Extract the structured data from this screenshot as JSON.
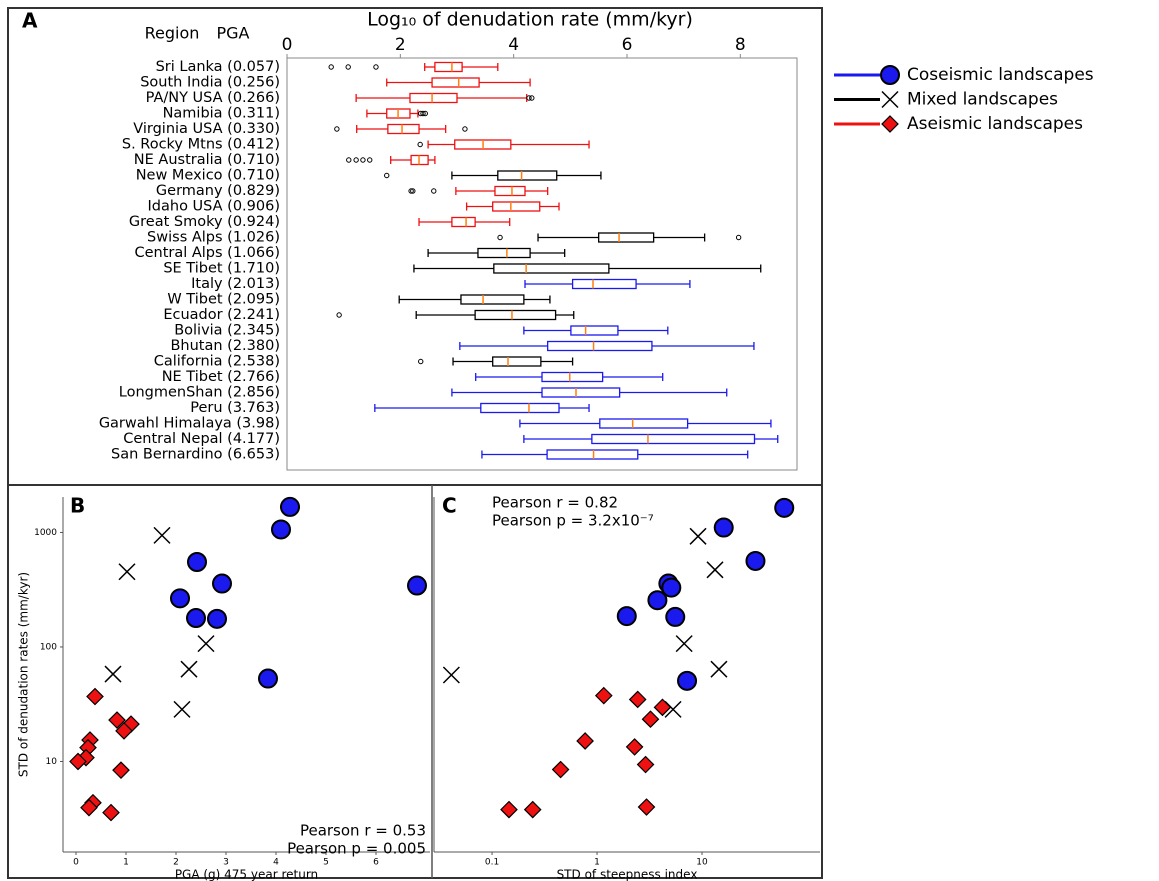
{
  "legend": [
    {
      "name": "Coseismic landscapes",
      "color": "#1a1aee",
      "marker": "circle"
    },
    {
      "name": "Mixed landscapes",
      "color": "#000000",
      "marker": "x"
    },
    {
      "name": "Aseismic landscapes",
      "color": "#ee1111",
      "marker": "diamond"
    }
  ],
  "chart_data": [
    {
      "type": "box",
      "orientation": "horizontal",
      "panel": "A",
      "title": "Log₁₀ of denudation rate (mm/kyr)",
      "row_header": [
        "Region",
        "PGA"
      ],
      "median_color": "#ff7f0e",
      "xlim": [
        0,
        9
      ],
      "xticks": [
        0,
        2,
        4,
        6,
        8
      ],
      "categories": [
        "Sri Lanka (0.057)",
        "South India (0.256)",
        "PA/NY USA (0.266)",
        "Namibia (0.311)",
        "Virginia USA (0.330)",
        "S. Rocky Mtns (0.412)",
        "NE Australia (0.710)",
        "New Mexico (0.710)",
        "Germany (0.829)",
        "Idaho USA (0.906)",
        "Great Smoky (0.924)",
        "Swiss Alps (1.026)",
        "Central Alps (1.066)",
        "SE Tibet (1.710)",
        "Italy (2.013)",
        "W Tibet (2.095)",
        "Ecuador (2.241)",
        "Bolivia (2.345)",
        "Bhutan (2.380)",
        "California (2.538)",
        "NE Tibet (2.766)",
        "LongmenShan (2.856)",
        "Peru (3.763)",
        "Garwahl Himalaya (3.98)",
        "Central Nepal (4.177)",
        "San Bernardino (6.653)"
      ],
      "boxes": [
        {
          "color": "#ee1111",
          "whisker_low": 2.43,
          "q1": 2.61,
          "median": 2.91,
          "q3": 3.09,
          "whisker_high": 3.72,
          "outliers": [
            0.78,
            1.08,
            1.57
          ]
        },
        {
          "color": "#ee1111",
          "whisker_low": 1.76,
          "q1": 2.56,
          "median": 3.03,
          "q3": 3.39,
          "whisker_high": 4.29,
          "outliers": []
        },
        {
          "color": "#ee1111",
          "whisker_low": 1.22,
          "q1": 2.17,
          "median": 2.56,
          "q3": 3.0,
          "whisker_high": 4.23,
          "outliers": [
            4.27,
            4.32
          ]
        },
        {
          "color": "#ee1111",
          "whisker_low": 1.41,
          "q1": 1.76,
          "median": 1.96,
          "q3": 2.17,
          "whisker_high": 2.31,
          "outliers": [
            2.36,
            2.4,
            2.44
          ]
        },
        {
          "color": "#ee1111",
          "whisker_low": 1.23,
          "q1": 1.78,
          "median": 2.03,
          "q3": 2.33,
          "whisker_high": 2.8,
          "outliers": [
            0.88,
            3.14
          ]
        },
        {
          "color": "#ee1111",
          "whisker_low": 2.49,
          "q1": 2.96,
          "median": 3.46,
          "q3": 3.95,
          "whisker_high": 5.33,
          "outliers": [
            2.35
          ]
        },
        {
          "color": "#ee1111",
          "whisker_low": 1.83,
          "q1": 2.19,
          "median": 2.33,
          "q3": 2.49,
          "whisker_high": 2.61,
          "outliers": [
            1.09,
            1.22,
            1.34,
            1.46
          ]
        },
        {
          "color": "#000000",
          "whisker_low": 2.91,
          "q1": 3.72,
          "median": 4.14,
          "q3": 4.76,
          "whisker_high": 5.54,
          "outliers": [
            1.76
          ]
        },
        {
          "color": "#ee1111",
          "whisker_low": 2.98,
          "q1": 3.67,
          "median": 3.97,
          "q3": 4.2,
          "whisker_high": 4.6,
          "outliers": [
            2.19,
            2.22,
            2.59
          ]
        },
        {
          "color": "#ee1111",
          "whisker_low": 3.17,
          "q1": 3.63,
          "median": 3.95,
          "q3": 4.46,
          "whisker_high": 4.8,
          "outliers": []
        },
        {
          "color": "#ee1111",
          "whisker_low": 2.33,
          "q1": 2.91,
          "median": 3.16,
          "q3": 3.32,
          "whisker_high": 3.93,
          "outliers": []
        },
        {
          "color": "#000000",
          "whisker_low": 4.43,
          "q1": 5.5,
          "median": 5.86,
          "q3": 6.47,
          "whisker_high": 7.37,
          "outliers": [
            3.76,
            7.97
          ]
        },
        {
          "color": "#000000",
          "whisker_low": 2.49,
          "q1": 3.37,
          "median": 3.88,
          "q3": 4.29,
          "whisker_high": 4.9,
          "outliers": []
        },
        {
          "color": "#000000",
          "whisker_low": 2.24,
          "q1": 3.65,
          "median": 4.22,
          "q3": 5.68,
          "whisker_high": 8.36,
          "outliers": []
        },
        {
          "color": "#1a1aee",
          "whisker_low": 4.2,
          "q1": 5.04,
          "median": 5.4,
          "q3": 6.16,
          "whisker_high": 7.11,
          "outliers": []
        },
        {
          "color": "#000000",
          "whisker_low": 1.98,
          "q1": 3.07,
          "median": 3.46,
          "q3": 4.18,
          "whisker_high": 4.64,
          "outliers": []
        },
        {
          "color": "#000000",
          "whisker_low": 2.28,
          "q1": 3.32,
          "median": 3.97,
          "q3": 4.74,
          "whisker_high": 5.06,
          "outliers": [
            0.92
          ]
        },
        {
          "color": "#1a1aee",
          "whisker_low": 4.18,
          "q1": 5.01,
          "median": 5.27,
          "q3": 5.84,
          "whisker_high": 6.72,
          "outliers": []
        },
        {
          "color": "#1a1aee",
          "whisker_low": 3.05,
          "q1": 4.6,
          "median": 5.41,
          "q3": 6.44,
          "whisker_high": 8.24,
          "outliers": []
        },
        {
          "color": "#000000",
          "whisker_low": 2.93,
          "q1": 3.63,
          "median": 3.9,
          "q3": 4.48,
          "whisker_high": 5.04,
          "outliers": [
            2.36
          ]
        },
        {
          "color": "#1a1aee",
          "whisker_low": 3.33,
          "q1": 4.5,
          "median": 4.99,
          "q3": 5.57,
          "whisker_high": 6.63,
          "outliers": []
        },
        {
          "color": "#1a1aee",
          "whisker_low": 2.91,
          "q1": 4.5,
          "median": 5.1,
          "q3": 5.87,
          "whisker_high": 7.76,
          "outliers": []
        },
        {
          "color": "#1a1aee",
          "whisker_low": 1.55,
          "q1": 3.42,
          "median": 4.27,
          "q3": 4.8,
          "whisker_high": 5.33,
          "outliers": []
        },
        {
          "color": "#1a1aee",
          "whisker_low": 4.11,
          "q1": 5.52,
          "median": 6.1,
          "q3": 7.07,
          "whisker_high": 8.54,
          "outliers": []
        },
        {
          "color": "#1a1aee",
          "whisker_low": 4.18,
          "q1": 5.38,
          "median": 6.37,
          "q3": 8.25,
          "whisker_high": 8.66,
          "outliers": []
        },
        {
          "color": "#1a1aee",
          "whisker_low": 3.44,
          "q1": 4.59,
          "median": 5.41,
          "q3": 6.19,
          "whisker_high": 8.13,
          "outliers": []
        }
      ]
    },
    {
      "type": "scatter",
      "panel": "B",
      "xlabel": "PGA (g) 475 year return",
      "ylabel": "STD of denudation rates (mm/kyr)",
      "annotations": [
        "Pearson r = 0.53",
        "Pearson p = 0.005"
      ],
      "xlim": [
        -0.26,
        7.08
      ],
      "xticks": [
        0,
        1,
        2,
        3,
        4,
        5,
        6
      ],
      "yscale": "log",
      "ylim": [
        1.62,
        2040
      ],
      "yticks": [
        10,
        100,
        1000
      ],
      "series": [
        {
          "color": "#1a1aee",
          "marker": "circle",
          "x": [
            4.28,
            4.1,
            2.42,
            2.92,
            2.08,
            2.4,
            2.82,
            3.84,
            6.82
          ],
          "values": [
            1671,
            1062,
            552,
            358,
            266,
            179,
            176,
            53,
            344
          ]
        },
        {
          "color": "#000000",
          "marker": "x",
          "x": [
            1.72,
            1.02,
            2.6,
            0.74,
            2.26,
            2.12
          ],
          "values": [
            943,
            454,
            107,
            58,
            64,
            28.5
          ]
        },
        {
          "color": "#ee1111",
          "marker": "diamond",
          "x": [
            0.38,
            0.82,
            1.1,
            0.96,
            0.28,
            0.24,
            0.2,
            0.04,
            0.9,
            0.34,
            0.26,
            0.7
          ],
          "values": [
            36.9,
            23,
            21.2,
            18.5,
            15.4,
            13.2,
            10.8,
            10,
            8.4,
            4.36,
            3.95,
            3.58
          ]
        }
      ]
    },
    {
      "type": "scatter",
      "panel": "C",
      "xlabel": "STD of steepness index",
      "annotations": [
        "Pearson r = 0.82",
        "Pearson p = 3.2x10⁻⁷"
      ],
      "xscale": "log",
      "xlim": [
        0.028,
        133
      ],
      "xticks": [
        0.1,
        1,
        10
      ],
      "yscale": "log",
      "ylim": [
        1.62,
        2040
      ],
      "series": [
        {
          "color": "#1a1aee",
          "marker": "circle",
          "x": [
            60.7,
            16.1,
            32.3,
            4.78,
            5.1,
            3.76,
            5.56,
            1.92,
            7.2
          ],
          "values": [
            1640,
            1104,
            564,
            358,
            330,
            256,
            183,
            186,
            50.6
          ]
        },
        {
          "color": "#000000",
          "marker": "x",
          "x": [
            9.17,
            13.3,
            6.76,
            14.5,
            5.3,
            0.041
          ],
          "values": [
            925,
            472,
            107,
            64,
            28.5,
            56.9
          ]
        },
        {
          "color": "#ee1111",
          "marker": "diamond",
          "x": [
            1.16,
            2.44,
            4.2,
            3.23,
            0.77,
            2.28,
            2.9,
            0.45,
            0.244,
            0.145,
            2.96
          ],
          "values": [
            37.6,
            34.8,
            29.7,
            23.4,
            15.1,
            13.4,
            9.4,
            8.5,
            3.8,
            3.8,
            4.0
          ]
        }
      ]
    }
  ]
}
